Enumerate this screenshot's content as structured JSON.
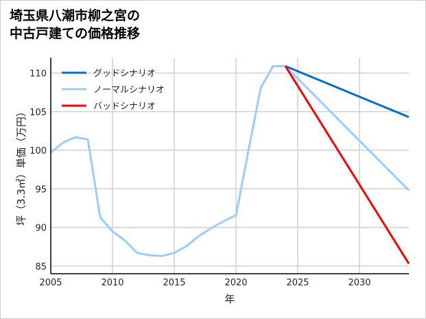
{
  "chart_data": {
    "type": "line",
    "title": [
      "埼玉県八潮市柳之宮の",
      "中古戸建ての価格推移"
    ],
    "xlabel": "年",
    "ylabel": "坪（3.3㎡）単価（万円）",
    "xlim": [
      2005,
      2034
    ],
    "ylim": [
      84,
      112
    ],
    "xticks": [
      2005,
      2010,
      2015,
      2020,
      2025,
      2030
    ],
    "yticks": [
      85,
      90,
      95,
      100,
      105,
      110
    ],
    "grid": true,
    "legend_position": "top-left",
    "series": [
      {
        "name": "グッドシナリオ",
        "color": "#0070cc",
        "x": [
          2024,
          2034
        ],
        "y": [
          110.9,
          104.3
        ]
      },
      {
        "name": "ノーマルシナリオ",
        "color": "#99ccff",
        "x": [
          2005,
          2006,
          2007,
          2008,
          2009,
          2010,
          2011,
          2012,
          2013,
          2014,
          2015,
          2016,
          2017,
          2018,
          2019,
          2020,
          2021,
          2022,
          2023,
          2024,
          2034
        ],
        "y": [
          99.7,
          101.0,
          101.7,
          101.4,
          91.3,
          89.5,
          88.3,
          86.7,
          86.4,
          86.3,
          86.7,
          87.6,
          88.9,
          89.9,
          90.8,
          91.6,
          99.9,
          108.1,
          110.9,
          110.9,
          94.8
        ]
      },
      {
        "name": "バッドシナリオ",
        "color": "#ff0000",
        "x": [
          2024,
          2034
        ],
        "y": [
          110.9,
          85.3
        ]
      }
    ]
  }
}
